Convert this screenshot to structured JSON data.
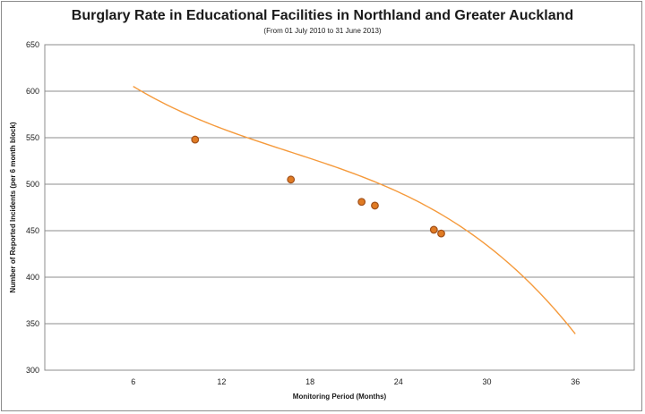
{
  "chart_data": {
    "type": "scatter",
    "title": "Burglary Rate in Educational Facilities in Northland and Greater Auckland",
    "subtitle": "(From 01 July 2010  to 31 June 2013)",
    "xlabel": "Monitoring Period (Months)",
    "ylabel": "Number of Reported Incidents (per 6 month block)",
    "xlim": [
      0,
      40
    ],
    "ylim": [
      300,
      650
    ],
    "x_ticks": [
      6,
      12,
      18,
      24,
      30,
      36
    ],
    "y_ticks": [
      300,
      350,
      400,
      450,
      500,
      550,
      600,
      650
    ],
    "grid": "horizontal",
    "series": [
      {
        "points": [
          {
            "x": 10.2,
            "y": 548
          },
          {
            "x": 16.7,
            "y": 505
          },
          {
            "x": 21.5,
            "y": 481
          },
          {
            "x": 22.4,
            "y": 477
          },
          {
            "x": 26.4,
            "y": 451
          },
          {
            "x": 26.9,
            "y": 447
          }
        ],
        "trendline": {
          "type": "polynomial",
          "coefficients": [
            680.5,
            -16.0,
            0.654,
            -0.01314
          ],
          "x_range": [
            6,
            36
          ]
        },
        "line_color": "#f59a3c",
        "marker_color": "#e07b24",
        "marker_edge": "#a0501a"
      }
    ]
  }
}
